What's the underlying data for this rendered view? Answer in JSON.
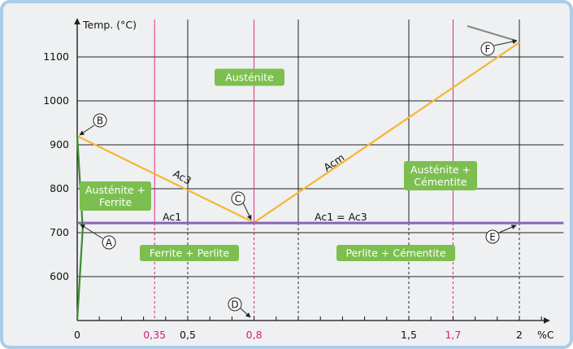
{
  "chart_data": {
    "type": "line",
    "ylabel": "Temp. (°C)",
    "xlabel": "%C",
    "xlim": [
      0,
      2.2
    ],
    "ylim": [
      500,
      1150
    ],
    "x_ticks": [
      {
        "value": 0,
        "label": "0",
        "highlight": false
      },
      {
        "value": 0.35,
        "label": "0,35",
        "highlight": true
      },
      {
        "value": 0.5,
        "label": "0,5",
        "highlight": false
      },
      {
        "value": 0.8,
        "label": "0,8",
        "highlight": true
      },
      {
        "value": 1.5,
        "label": "1,5",
        "highlight": false
      },
      {
        "value": 1.7,
        "label": "1,7",
        "highlight": true
      },
      {
        "value": 2,
        "label": "2",
        "highlight": false
      }
    ],
    "y_ticks": [
      600,
      700,
      800,
      900,
      1000,
      1100
    ],
    "vertical_grid": [
      {
        "x": 0.35,
        "color": "pink"
      },
      {
        "x": 0.5,
        "color": "black"
      },
      {
        "x": 0.8,
        "color": "pink"
      },
      {
        "x": 1.0,
        "color": "black"
      },
      {
        "x": 1.5,
        "color": "black"
      },
      {
        "x": 1.7,
        "color": "pink"
      },
      {
        "x": 2.0,
        "color": "black"
      }
    ],
    "series": [
      {
        "name": "Ac3",
        "color": "#f5b731",
        "points": [
          [
            0,
            920
          ],
          [
            0.8,
            723
          ]
        ]
      },
      {
        "name": "Acm",
        "color": "#f5b731",
        "points": [
          [
            0.8,
            723
          ],
          [
            2.0,
            1133
          ]
        ]
      },
      {
        "name": "Ac1 = Ac3",
        "color": "#8a64b4",
        "points": [
          [
            0,
            722
          ],
          [
            2.2,
            722
          ]
        ]
      },
      {
        "name": "",
        "color": "#3c8c33",
        "points": [
          [
            0,
            920
          ],
          [
            0.025,
            710
          ],
          [
            0,
            500
          ]
        ]
      }
    ],
    "curve_labels": [
      "Ac3",
      "Acm",
      "Ac1",
      "Ac1 = Ac3"
    ],
    "regions": [
      {
        "lines": [
          "Austénite"
        ]
      },
      {
        "lines": [
          "Austénite +",
          "Ferrite"
        ]
      },
      {
        "lines": [
          "Austénite +",
          "Cémentite"
        ]
      },
      {
        "lines": [
          "Ferrite + Perlite"
        ]
      },
      {
        "lines": [
          "Perlite + Cémentite"
        ]
      }
    ],
    "points": [
      {
        "letter": "A",
        "x": 0.02,
        "y": 720
      },
      {
        "letter": "B",
        "x": 0,
        "y": 920
      },
      {
        "letter": "C",
        "x": 0.8,
        "y": 723
      },
      {
        "letter": "D",
        "x": 0.8,
        "y": 500
      },
      {
        "letter": "E",
        "x": 2.0,
        "y": 722
      },
      {
        "letter": "F",
        "x": 2.0,
        "y": 1133
      }
    ],
    "colors": {
      "accent_yellow": "#f5b731",
      "purple": "#8a64b4",
      "green_box": "#7cbf50",
      "pink": "#e2157a",
      "border": "#a9cdea",
      "background": "#eef0f1"
    }
  }
}
